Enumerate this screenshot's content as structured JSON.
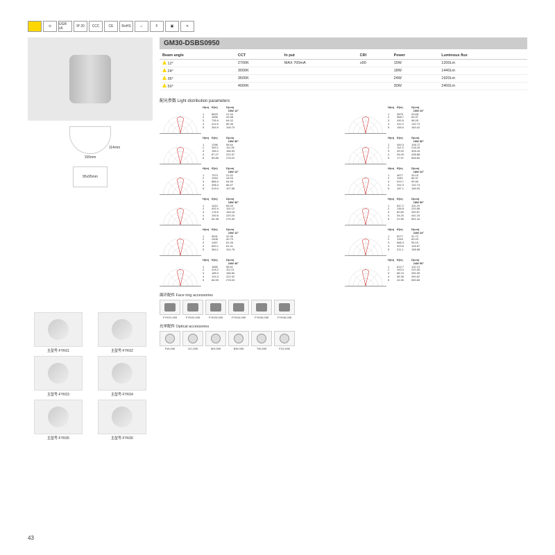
{
  "icons": [
    "",
    "⊙",
    "UGR ≤6",
    "IP 20",
    "CCC",
    "CE",
    "RoHS",
    "⌂",
    "F",
    "▣",
    "✕"
  ],
  "product_code": "GM30-DSBS0950",
  "spec_headers": [
    "Beam angle",
    "CCT",
    "In put",
    "CRI",
    "Power",
    "Luminous flux"
  ],
  "spec_rows": [
    [
      "12°",
      "2700K",
      "MAX  700mA",
      "≥90",
      "15W",
      "1200Lm"
    ],
    [
      "24°",
      "3000K",
      "",
      "",
      "18W",
      "1440Lm"
    ],
    [
      "36°",
      "3500K",
      "",
      "",
      "24W",
      "1920Lm"
    ],
    [
      "50°",
      "4000K",
      "",
      "",
      "30W",
      "2400Lm"
    ]
  ],
  "dim_width": "155mm",
  "dim_height": "114mm",
  "dim_cutout": "95x95mm",
  "models": [
    {
      "label": "主型号-FYK01"
    },
    {
      "label": "主型号-FYK02"
    },
    {
      "label": "主型号-FYK03"
    },
    {
      "label": "主型号-FYK04"
    },
    {
      "label": "主型号-FYK05"
    },
    {
      "label": "主型号-FYK06"
    }
  ],
  "light_dist_title": "配光参数  Light distribution parameters",
  "polar_data": [
    {
      "t": "15W 12°",
      "r": [
        [
          "1",
          "6823",
          "21.34"
        ],
        [
          "2",
          "1656",
          "42.68"
        ],
        [
          "3",
          "735.9",
          "64.02"
        ],
        [
          "4",
          "414.0",
          "85.36"
        ],
        [
          "5",
          "264.9",
          "106.70"
        ]
      ]
    },
    {
      "t": "15W 24°",
      "r": [
        [
          "1",
          "3875",
          "33.68"
        ],
        [
          "2",
          "968.7",
          "63.37"
        ],
        [
          "3",
          "430.5",
          "96.05"
        ],
        [
          "4",
          "242.2",
          "132.74"
        ],
        [
          "5",
          "155.0",
          "163.42"
        ]
      ]
    },
    {
      "t": "15W 36°",
      "r": [
        [
          "1",
          "1396",
          "55.64"
        ],
        [
          "2",
          "349.1",
          "111.28"
        ],
        [
          "3",
          "155.2",
          "166.93"
        ],
        [
          "4",
          "87.27",
          "222.57"
        ],
        [
          "5",
          "55.86",
          "278.22"
        ]
      ]
    },
    {
      "t": "15W 50°",
      "r": [
        [
          "1",
          "449.3",
          "108.72"
        ],
        [
          "2",
          "112.3",
          "218.44"
        ],
        [
          "3",
          "49.92",
          "328.16"
        ],
        [
          "4",
          "28.09",
          "438.88"
        ],
        [
          "5",
          "17.97",
          "548.60"
        ]
      ]
    },
    {
      "t": "18W 12°",
      "r": [
        [
          "1",
          "7974",
          "21.02"
        ],
        [
          "2",
          "1994",
          "43.03"
        ],
        [
          "3",
          "886.0",
          "64.55"
        ],
        [
          "4",
          "498.4",
          "86.07"
        ],
        [
          "5",
          "319.0",
          "107.58"
        ]
      ]
    },
    {
      "t": "18W 24°",
      "r": [
        [
          "1",
          "4677",
          "33.19"
        ],
        [
          "2",
          "1169",
          "66.37"
        ],
        [
          "3",
          "519.7",
          "99.56"
        ],
        [
          "4",
          "292.3",
          "132.74"
        ],
        [
          "5",
          "187.1",
          "165.93"
        ]
      ]
    },
    {
      "t": "18W 36°",
      "r": [
        [
          "1",
          "1610",
          "55.09"
        ],
        [
          "2",
          "402.4",
          "110.12"
        ],
        [
          "3",
          "178.9",
          "165.18"
        ],
        [
          "4",
          "100.6",
          "220.24"
        ],
        [
          "5",
          "64.38",
          "275.30"
        ]
      ]
    },
    {
      "t": "18W 50°",
      "r": [
        [
          "1",
          "547.2",
          "110.29"
        ],
        [
          "2",
          "136.8",
          "220.58"
        ],
        [
          "3",
          "60.80",
          "330.87"
        ],
        [
          "4",
          "34.20",
          "441.15"
        ],
        [
          "5",
          "21.89",
          "551.44"
        ]
      ]
    },
    {
      "t": "24W 12°",
      "r": [
        [
          "1",
          "9631",
          "20.35"
        ],
        [
          "2",
          "2408",
          "40.70"
        ],
        [
          "3",
          "1067",
          "61.06"
        ],
        [
          "4",
          "600.1",
          "81.41"
        ],
        [
          "5",
          "384.1",
          "101.76"
        ]
      ]
    },
    {
      "t": "24W 24°",
      "r": [
        [
          "1",
          "5277",
          "31.72"
        ],
        [
          "2",
          "1316",
          "63.43"
        ],
        [
          "3",
          "588.3",
          "95.15"
        ],
        [
          "4",
          "329.6",
          "126.87"
        ],
        [
          "5",
          "211.1",
          "158.58"
        ]
      ]
    },
    {
      "t": "24W 36°",
      "r": [
        [
          "1",
          "1665",
          "55.61"
        ],
        [
          "2",
          "416.2",
          "111.21"
        ],
        [
          "3",
          "185.0",
          "166.82"
        ],
        [
          "4",
          "104.3",
          "222.42"
        ],
        [
          "5",
          "66.59",
          "278.03"
        ]
      ]
    },
    {
      "t": "24W 50°",
      "r": [
        [
          "1",
          "613.7",
          "110.13"
        ],
        [
          "2",
          "153.4",
          "220.26"
        ],
        [
          "3",
          "68.19",
          "330.39"
        ],
        [
          "4",
          "38.36",
          "440.52"
        ],
        [
          "5",
          "24.55",
          "550.65"
        ]
      ]
    }
  ],
  "face_ring_title": "面环配件  Face ring accessories",
  "face_rings": [
    "FYK01-095",
    "FYK02-095",
    "FYK03-095",
    "FYK04-095",
    "FYK05-095",
    "FYK06-095"
  ],
  "optical_title": "光学配件  Optical accessories",
  "opticals": [
    "FW-095",
    "GC-095",
    "MS-095",
    "BW-095",
    "TW-095",
    "FXZ-095"
  ],
  "page": "43"
}
